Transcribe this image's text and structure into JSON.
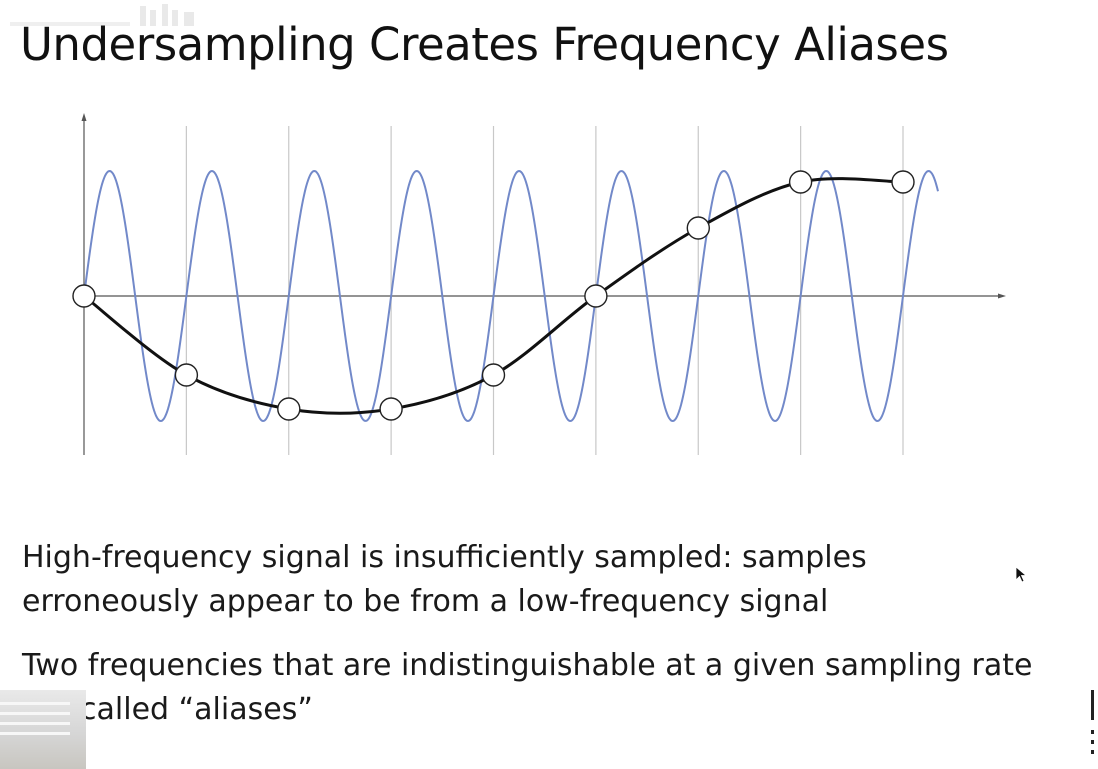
{
  "slide": {
    "title": "Undersampling Creates Frequency Aliases",
    "bullets": [
      "High-frequency signal is insufficiently sampled: samples erroneously appear to be from a low-frequency signal",
      "Two frequencies that are indistinguishable at a given sampling rate are called “aliases”"
    ]
  },
  "diagram": {
    "high_frequency_color": "#7289c9",
    "low_frequency_color": "#111111",
    "sample_count": 9,
    "high_frequency_cycles_per_sample_interval": 1.0,
    "high_frequency_cycles_shown": 8.5
  },
  "colors": {
    "background": "#ffffff",
    "text": "#1a1a1a",
    "gridline": "#c8c8c8",
    "axis": "#555555"
  }
}
